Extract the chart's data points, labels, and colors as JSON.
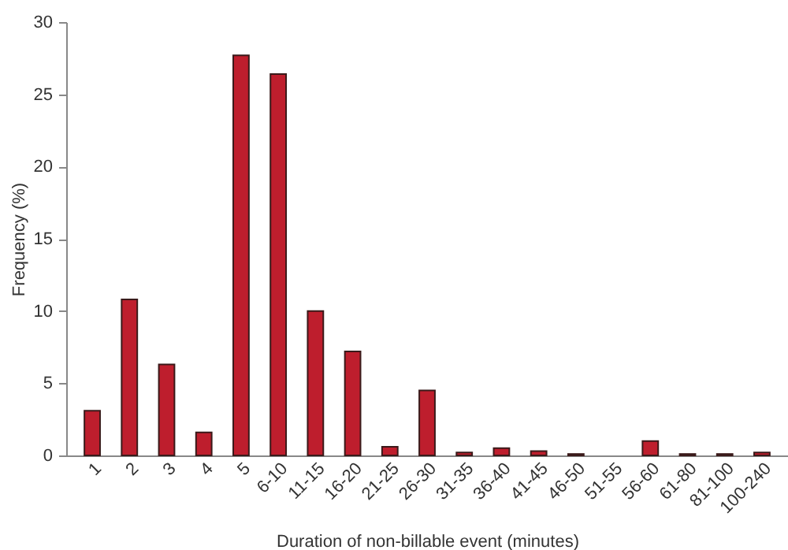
{
  "chart_data": {
    "type": "bar",
    "xlabel": "Duration of non-billable event (minutes)",
    "ylabel": "Frequency (%)",
    "categories": [
      "1",
      "2",
      "3",
      "4",
      "5",
      "6-10",
      "11-15",
      "16-20",
      "21-25",
      "26-30",
      "31-35",
      "36-40",
      "41-45",
      "46-50",
      "51-55",
      "56-60",
      "61-80",
      "81-100",
      "100-240"
    ],
    "values": [
      3.1,
      10.8,
      6.3,
      1.6,
      27.7,
      26.4,
      10.0,
      7.2,
      0.6,
      4.5,
      0.2,
      0.5,
      0.3,
      0.1,
      0,
      1.0,
      0.1,
      0.1,
      0.2
    ],
    "color": "#be1e2d",
    "ylim": [
      0,
      30
    ],
    "yticks": [
      0,
      5,
      10,
      15,
      20,
      25,
      30
    ],
    "grid": false
  }
}
